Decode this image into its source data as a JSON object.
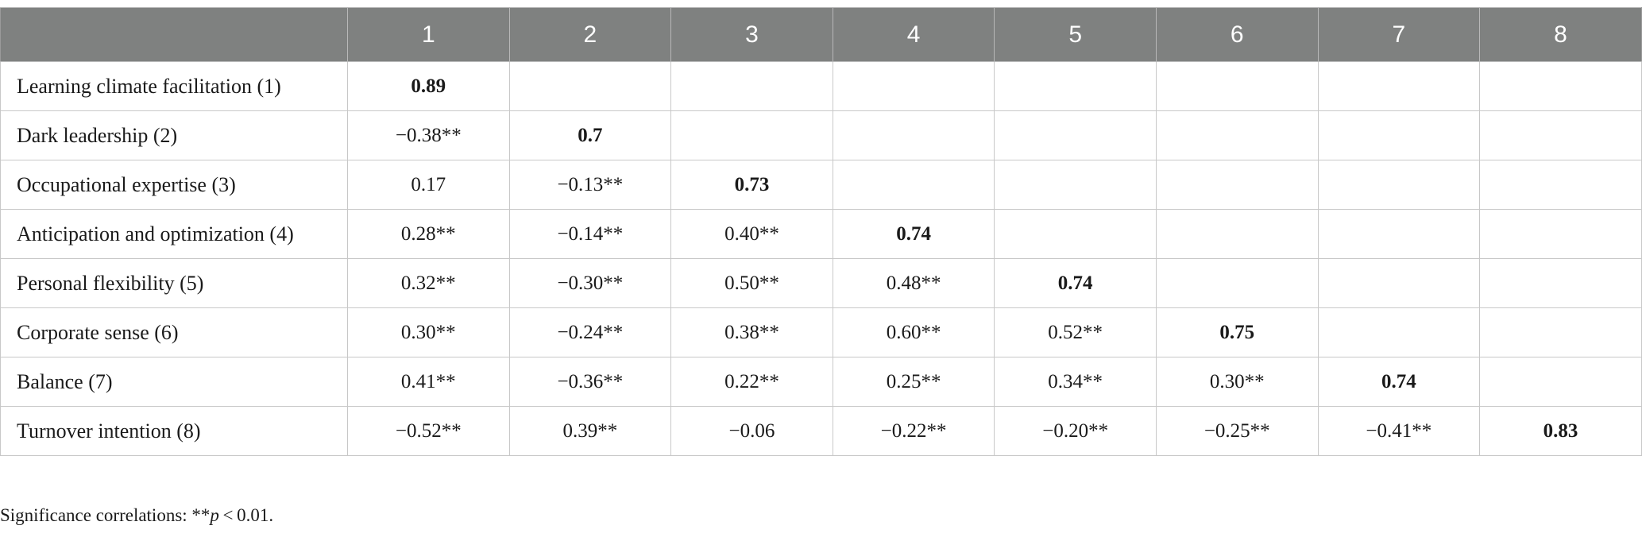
{
  "table": {
    "columns": [
      "",
      "1",
      "2",
      "3",
      "4",
      "5",
      "6",
      "7",
      "8"
    ],
    "rows": [
      {
        "label": "Learning climate facilitation (1)",
        "cells": [
          "0.89",
          "",
          "",
          "",
          "",
          "",
          "",
          ""
        ]
      },
      {
        "label": "Dark leadership (2)",
        "cells": [
          "−0.38**",
          "0.7",
          "",
          "",
          "",
          "",
          "",
          ""
        ]
      },
      {
        "label": "Occupational expertise (3)",
        "cells": [
          "0.17",
          "−0.13**",
          "0.73",
          "",
          "",
          "",
          "",
          ""
        ]
      },
      {
        "label": "Anticipation and optimization (4)",
        "cells": [
          "0.28**",
          "−0.14**",
          "0.40**",
          "0.74",
          "",
          "",
          "",
          ""
        ]
      },
      {
        "label": "Personal flexibility (5)",
        "cells": [
          "0.32**",
          "−0.30**",
          "0.50**",
          "0.48**",
          "0.74",
          "",
          "",
          ""
        ]
      },
      {
        "label": "Corporate sense (6)",
        "cells": [
          "0.30**",
          "−0.24**",
          "0.38**",
          "0.60**",
          "0.52**",
          "0.75",
          "",
          ""
        ]
      },
      {
        "label": "Balance (7)",
        "cells": [
          "0.41**",
          "−0.36**",
          "0.22**",
          "0.25**",
          "0.34**",
          "0.30**",
          "0.74",
          ""
        ]
      },
      {
        "label": "Turnover intention (8)",
        "cells": [
          "−0.52**",
          "0.39**",
          "−0.06",
          "−0.22**",
          "−0.20**",
          "−0.25**",
          "−0.41**",
          "0.83"
        ]
      }
    ]
  },
  "footnote": {
    "prefix": "Significance correlations: **",
    "italic": "p",
    "suffix": " < 0.01."
  },
  "colors": {
    "header_bg": "#7f8180",
    "header_text": "#ffffff",
    "grid": "#c8c8c8"
  }
}
